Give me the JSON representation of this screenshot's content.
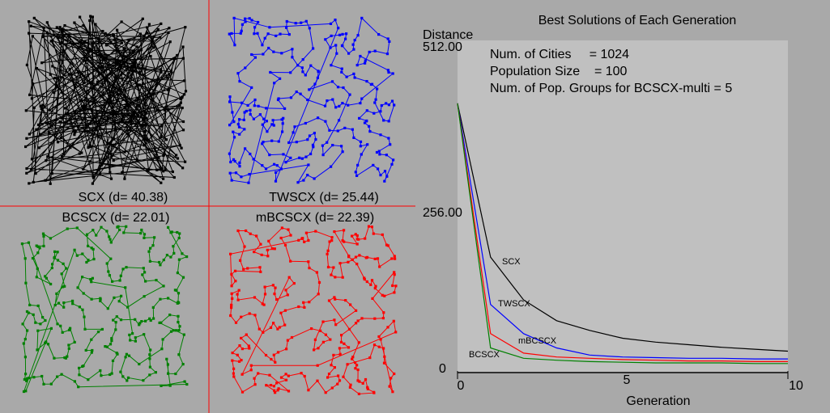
{
  "panels": [
    {
      "id": "scx",
      "label": "SCX (d= 40.38)",
      "color": "#000000",
      "style": "random"
    },
    {
      "id": "twscx",
      "label": "TWSCX (d= 25.44)",
      "color": "#0000ff",
      "style": "local"
    },
    {
      "id": "bcscx",
      "label": "BCSCX (d= 22.01)",
      "color": "#008000",
      "style": "local"
    },
    {
      "id": "mbcscx",
      "label": "mBCSCX (d= 22.39)",
      "color": "#ff0000",
      "style": "local"
    }
  ],
  "divider_color": "#ff0000",
  "info": {
    "cities": "Num. of Cities     = 1024",
    "population": "Population Size    = 100",
    "groups": "Num. of Pop. Groups for BCSCX-multi = 5"
  },
  "chart_data": {
    "type": "line",
    "title": "Best Solutions of Each Generation",
    "ylabel": "Distance",
    "xlabel": "Generation",
    "xlim": [
      0,
      10
    ],
    "ylim": [
      0,
      512
    ],
    "x_ticks": [
      "0",
      "5",
      "10"
    ],
    "y_ticks": [
      "512.00",
      "256.00",
      "0"
    ],
    "x": [
      0,
      1,
      2,
      3,
      4,
      5,
      6,
      7,
      8,
      9,
      10
    ],
    "series": [
      {
        "name": "SCX",
        "color": "#000000",
        "values": [
          415,
          178,
          112,
          80,
          65,
          53,
          47,
          43,
          39,
          36,
          33
        ]
      },
      {
        "name": "TWSCX",
        "color": "#0000ff",
        "values": [
          415,
          105,
          60,
          38,
          27,
          24,
          23,
          22,
          22,
          21,
          21
        ]
      },
      {
        "name": "mBCSCX",
        "color": "#ff0000",
        "values": [
          415,
          60,
          30,
          24,
          22,
          20,
          19,
          18,
          18,
          17,
          17
        ]
      },
      {
        "name": "BCSCX",
        "color": "#008000",
        "values": [
          415,
          38,
          22,
          19,
          17,
          16,
          15,
          15,
          15,
          14,
          14
        ]
      }
    ]
  }
}
